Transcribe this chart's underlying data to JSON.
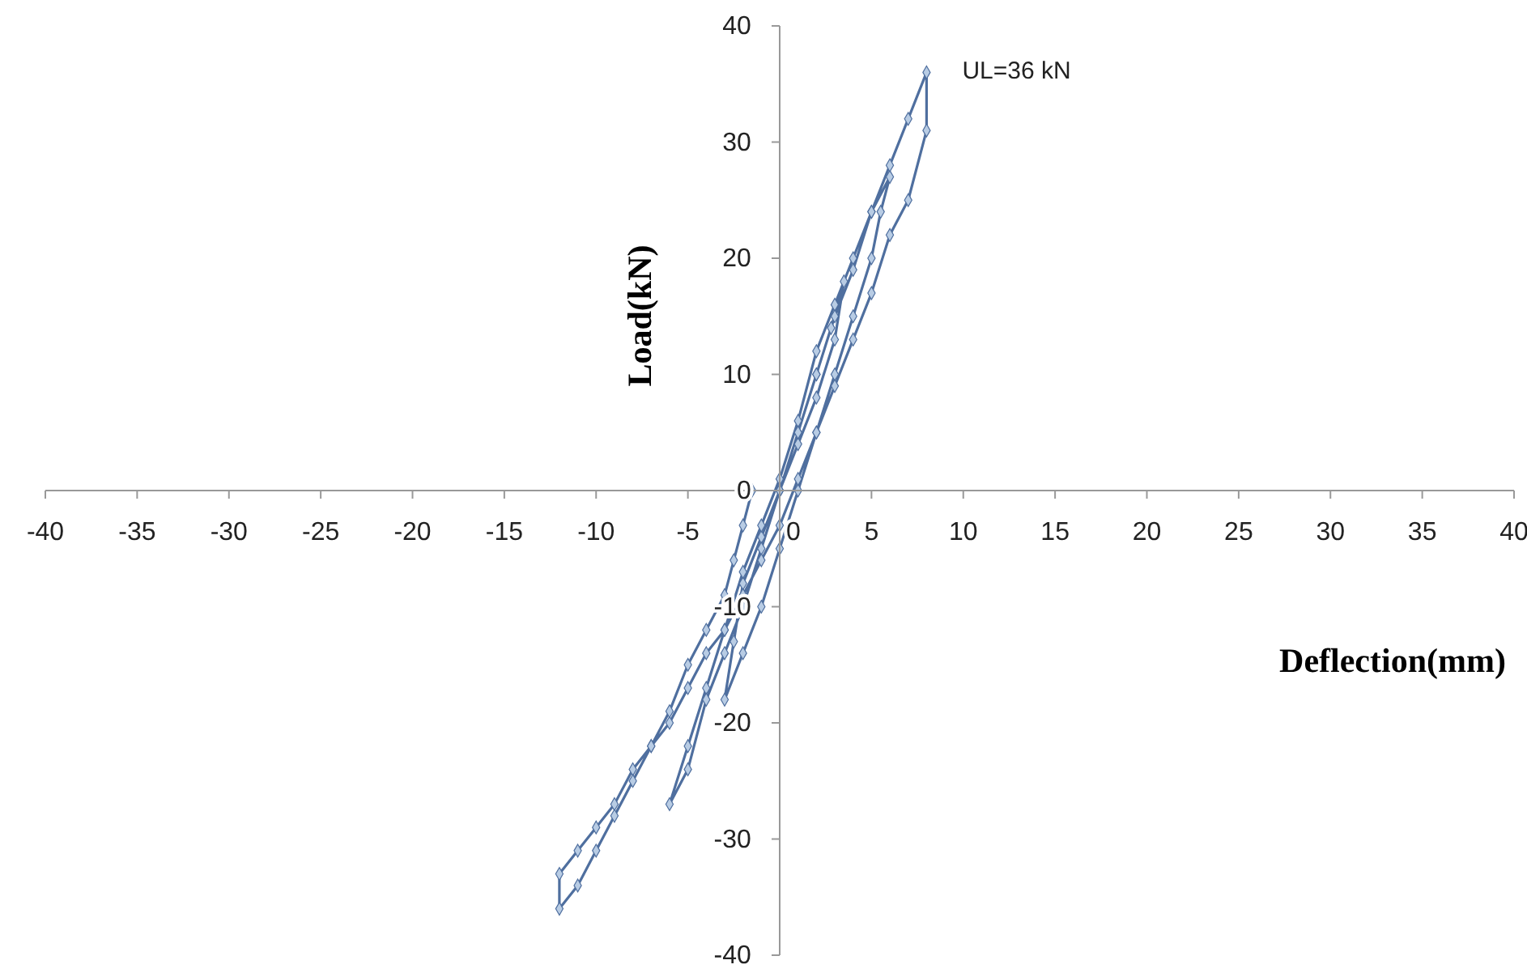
{
  "chart_data": {
    "type": "line",
    "xlabel": "Deflection(mm)",
    "ylabel": "Load(kN)",
    "xlim": [
      -40,
      40
    ],
    "ylim": [
      -40,
      40
    ],
    "xticks": [
      -40,
      -35,
      -30,
      -25,
      -20,
      -15,
      -10,
      -5,
      0,
      5,
      10,
      15,
      20,
      25,
      30,
      35,
      40
    ],
    "yticks": [
      -40,
      -30,
      -20,
      -10,
      0,
      10,
      20,
      30,
      40
    ],
    "grid": false,
    "marker": "diamond",
    "line_style": "solid",
    "annotations": [
      {
        "text": "UL=36 kN",
        "x": 8,
        "y": 36
      }
    ],
    "series": [
      {
        "color": "#4f6f9f",
        "x": [
          0,
          1,
          2,
          2.8,
          3.5,
          3,
          2,
          1,
          0,
          -1,
          -2,
          -2.5,
          -3,
          -2,
          -1,
          0,
          1,
          2,
          3,
          4,
          5,
          5.5,
          6,
          5,
          4,
          3,
          2,
          1,
          0,
          -1,
          -2,
          -3,
          -4,
          -5,
          -6,
          -5,
          -4,
          -3,
          -2,
          -1,
          0,
          1,
          2,
          3,
          4,
          5,
          6,
          7,
          8,
          8,
          7,
          6,
          5,
          4,
          3,
          2,
          1,
          0,
          -1,
          -2,
          -3,
          -4,
          -5,
          -6,
          -7,
          -8,
          -9,
          -10,
          -11,
          -12,
          -12,
          -11,
          -10,
          -9,
          -8,
          -7,
          -6,
          -5,
          -4,
          -3,
          -2.5,
          -2,
          -1.5
        ],
        "values": [
          0,
          5,
          10,
          14,
          18,
          13,
          8,
          4,
          0,
          -4,
          -8,
          -13,
          -18,
          -14,
          -10,
          -5,
          0,
          5,
          10,
          15,
          20,
          24,
          27,
          24,
          20,
          16,
          12,
          6,
          1,
          -3,
          -7,
          -12,
          -17,
          -22,
          -27,
          -24,
          -18,
          -14,
          -10,
          -5,
          0,
          5,
          10,
          15,
          19,
          24,
          28,
          32,
          36,
          31,
          25,
          22,
          17,
          13,
          9,
          5,
          1,
          -3,
          -6,
          -9,
          -12,
          -14,
          -17,
          -20,
          -22,
          -24,
          -27,
          -29,
          -31,
          -33,
          -36,
          -34,
          -31,
          -28,
          -25,
          -22,
          -19,
          -15,
          -12,
          -9,
          -6,
          -3,
          0
        ]
      }
    ]
  }
}
